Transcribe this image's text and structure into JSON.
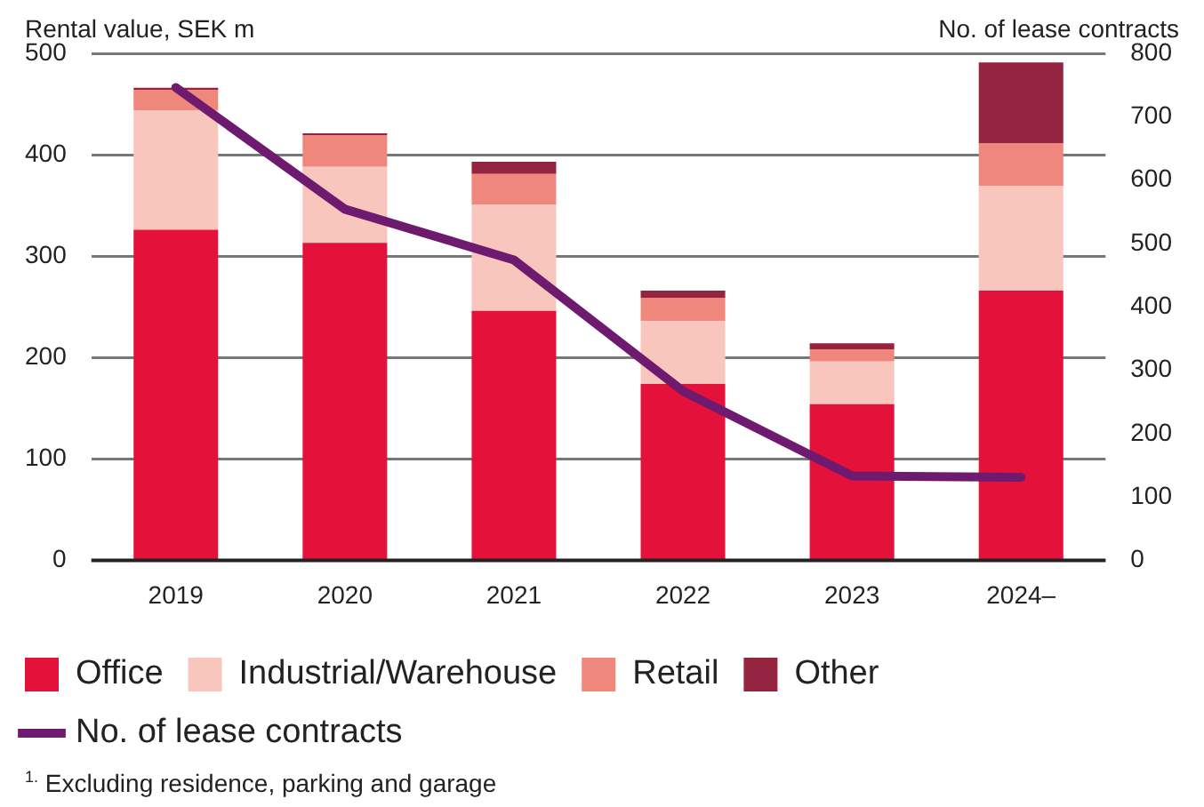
{
  "chart_data": {
    "type": "bar",
    "stacked": true,
    "ylabel": "Rental value, SEK m",
    "y2label": "No. of lease contracts",
    "categories": [
      "2019",
      "2020",
      "2021",
      "2022",
      "2023",
      "2024–"
    ],
    "series": [
      {
        "name": "Office",
        "color": "#e4123a",
        "values": [
          326,
          313,
          246,
          174,
          154,
          266
        ]
      },
      {
        "name": "Industrial/Warehouse",
        "color": "#f8c6bc",
        "values": [
          118,
          75,
          105,
          62,
          42,
          103
        ]
      },
      {
        "name": "Retail",
        "color": "#f0877d",
        "values": [
          20,
          31,
          30,
          23,
          12,
          42
        ]
      },
      {
        "name": "Other",
        "color": "#94243f",
        "values": [
          2,
          2,
          12,
          7,
          6,
          80
        ]
      },
      {
        "name": "No. of lease contracts",
        "type": "line",
        "axis": "y2",
        "color": "#6e1a6e",
        "values": [
          746,
          554,
          474,
          267,
          133,
          131
        ]
      }
    ],
    "ylim": [
      0,
      500
    ],
    "yticks": [
      0,
      100,
      200,
      300,
      400,
      500
    ],
    "y2lim": [
      0,
      800
    ],
    "y2ticks": [
      0,
      100,
      200,
      300,
      400,
      500,
      600,
      700,
      800
    ],
    "grid": "y",
    "legend": "bottom",
    "annotations": [
      "$^{1.}$ Excluding residence, parking and garage"
    ]
  }
}
